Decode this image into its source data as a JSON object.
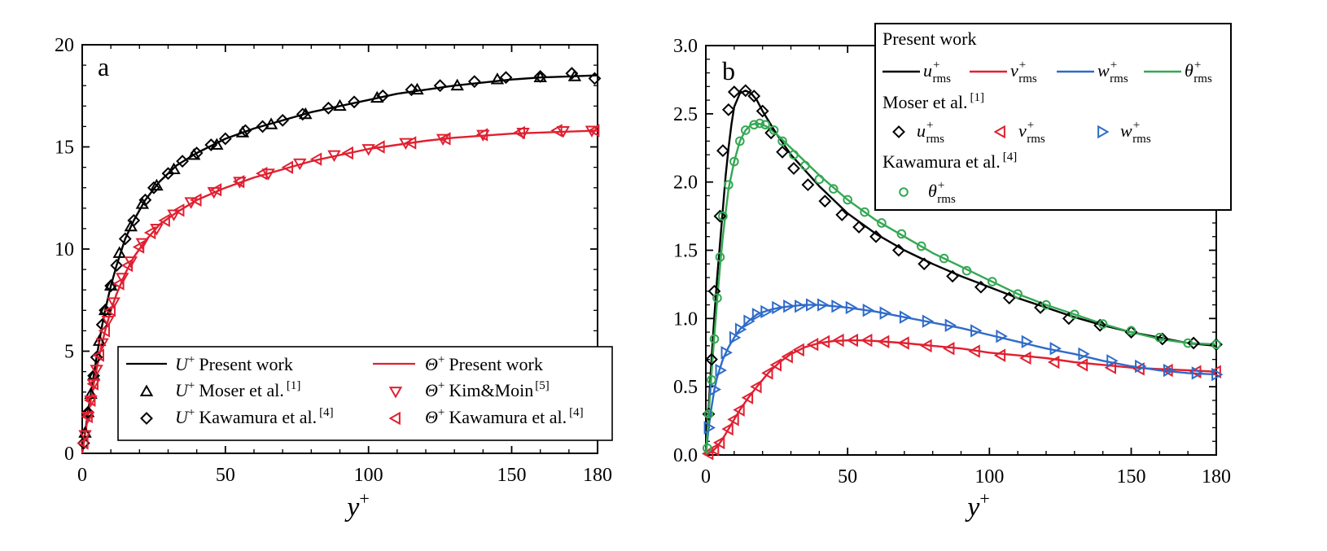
{
  "chart_data": [
    {
      "type": "line",
      "panel_label": "a",
      "xlabel": "y+",
      "ylabel": "",
      "xlim": [
        0,
        180
      ],
      "ylim": [
        0,
        20
      ],
      "xticks": [
        "0",
        "50",
        "100",
        "150",
        "180"
      ],
      "yticks": [
        "0",
        "5",
        "10",
        "15",
        "20"
      ],
      "legend_placement": "bottom-right",
      "series": [
        {
          "name": "U+ Present work",
          "style": "line",
          "color": "#000000",
          "x": [
            0,
            1,
            2,
            3,
            4,
            5,
            6,
            7,
            8,
            10,
            12,
            15,
            18,
            22,
            27,
            33,
            40,
            50,
            60,
            70,
            80,
            90,
            100,
            110,
            120,
            130,
            140,
            150,
            160,
            170,
            180
          ],
          "y": [
            0,
            1.0,
            2.0,
            2.9,
            3.8,
            4.7,
            5.5,
            6.3,
            7.0,
            8.2,
            9.2,
            10.5,
            11.4,
            12.4,
            13.3,
            14.1,
            14.7,
            15.4,
            15.9,
            16.3,
            16.7,
            17.0,
            17.3,
            17.6,
            17.8,
            18.0,
            18.15,
            18.3,
            18.4,
            18.45,
            18.5
          ]
        },
        {
          "name": "Θ+ Present work",
          "style": "line",
          "color": "#e02030",
          "x": [
            0,
            1,
            2,
            3,
            4,
            5,
            6,
            8,
            10,
            12,
            15,
            18,
            22,
            27,
            33,
            40,
            50,
            60,
            70,
            80,
            90,
            100,
            110,
            120,
            130,
            140,
            150,
            160,
            170,
            180
          ],
          "y": [
            0,
            0.9,
            1.8,
            2.6,
            3.4,
            4.1,
            4.8,
            6.0,
            7.0,
            7.8,
            8.8,
            9.6,
            10.4,
            11.2,
            11.8,
            12.4,
            13.0,
            13.5,
            13.9,
            14.3,
            14.6,
            14.9,
            15.1,
            15.3,
            15.45,
            15.55,
            15.65,
            15.7,
            15.75,
            15.8
          ]
        },
        {
          "name": "U+ Moser et al.",
          "reference": "[1]",
          "style": "marker",
          "marker": "triangle-up",
          "color": "#000000",
          "x": [
            1,
            2,
            3,
            4,
            6,
            8,
            10,
            13,
            17,
            21,
            26,
            32,
            39,
            47,
            56,
            66,
            78,
            90,
            103,
            117,
            131,
            145,
            160,
            172
          ],
          "y": [
            1.0,
            2.0,
            2.9,
            3.8,
            5.5,
            7.0,
            8.2,
            9.8,
            11.1,
            12.2,
            13.1,
            13.9,
            14.6,
            15.1,
            15.7,
            16.1,
            16.6,
            17.0,
            17.4,
            17.8,
            18.0,
            18.3,
            18.4,
            18.45
          ]
        },
        {
          "name": "U+ Kawamura et al.",
          "reference": "[4]",
          "style": "marker",
          "marker": "diamond",
          "color": "#000000",
          "x": [
            0.5,
            2,
            4,
            5,
            7,
            8,
            10,
            12,
            15,
            18,
            22,
            25,
            30,
            35,
            40,
            45,
            50,
            57,
            63,
            70,
            77,
            86,
            95,
            105,
            115,
            125,
            137,
            148,
            160,
            171,
            179
          ],
          "y": [
            0.5,
            2.0,
            3.8,
            4.7,
            6.3,
            7.0,
            8.2,
            9.2,
            10.5,
            11.4,
            12.4,
            13.0,
            13.7,
            14.3,
            14.7,
            15.1,
            15.4,
            15.8,
            16.0,
            16.3,
            16.6,
            16.9,
            17.2,
            17.5,
            17.8,
            18.0,
            18.2,
            18.4,
            18.45,
            18.6,
            18.35
          ]
        },
        {
          "name": "Θ+ Kim&Moin",
          "reference": "[5]",
          "style": "marker",
          "marker": "triangle-down",
          "color": "#e02030",
          "x": [
            1,
            2,
            3,
            4,
            5,
            7,
            9,
            11,
            14,
            17,
            21,
            26,
            32,
            38,
            46,
            55,
            65,
            76,
            88,
            100,
            113,
            126,
            140,
            154,
            168,
            178
          ],
          "y": [
            0.9,
            1.8,
            2.6,
            3.4,
            4.1,
            5.4,
            6.5,
            7.4,
            8.6,
            9.4,
            10.3,
            11.0,
            11.7,
            12.3,
            12.8,
            13.3,
            13.7,
            14.2,
            14.6,
            14.9,
            15.2,
            15.4,
            15.6,
            15.7,
            15.78,
            15.8
          ]
        },
        {
          "name": "Θ+ Kawamura et al.",
          "reference": "[4]",
          "style": "marker",
          "marker": "triangle-left",
          "color": "#e02030",
          "x": [
            0.5,
            2,
            3,
            4,
            6,
            8,
            10,
            13,
            16,
            20,
            24,
            29,
            34,
            40,
            47,
            55,
            63,
            72,
            82,
            93,
            104,
            115,
            127,
            140,
            153,
            166,
            179
          ],
          "y": [
            0.5,
            1.8,
            2.6,
            3.4,
            4.8,
            6.0,
            7.0,
            8.3,
            9.2,
            10.1,
            10.8,
            11.4,
            11.9,
            12.4,
            12.9,
            13.3,
            13.7,
            14.0,
            14.4,
            14.7,
            15.0,
            15.2,
            15.4,
            15.6,
            15.7,
            15.8,
            15.8
          ]
        }
      ]
    },
    {
      "type": "line",
      "panel_label": "b",
      "xlabel": "y+",
      "ylabel": "",
      "xlim": [
        0,
        180
      ],
      "ylim": [
        0,
        3.0
      ],
      "xticks": [
        "0",
        "50",
        "100",
        "150",
        "180"
      ],
      "yticks": [
        "0.0",
        "0.5",
        "1.0",
        "1.5",
        "2.0",
        "2.5",
        "3.0"
      ],
      "legend_placement": "top-right",
      "legend_groups": [
        "Present work",
        "Moser et al.",
        "Kawamura et al."
      ],
      "legend_group_refs": [
        "",
        "[1]",
        "[4]"
      ],
      "series": [
        {
          "name": "u+ rms",
          "group": "Present work",
          "style": "line",
          "color": "#000000",
          "x": [
            0,
            1,
            2,
            3,
            4,
            5,
            6,
            7,
            8,
            9,
            10,
            12,
            14,
            16,
            18,
            20,
            25,
            30,
            40,
            50,
            60,
            70,
            80,
            90,
            100,
            110,
            120,
            130,
            140,
            150,
            160,
            170,
            180
          ],
          "y": [
            0,
            0.35,
            0.7,
            1.02,
            1.3,
            1.55,
            1.8,
            2.05,
            2.25,
            2.42,
            2.55,
            2.65,
            2.67,
            2.65,
            2.6,
            2.52,
            2.35,
            2.2,
            1.97,
            1.77,
            1.62,
            1.5,
            1.4,
            1.31,
            1.23,
            1.15,
            1.08,
            1.01,
            0.95,
            0.9,
            0.86,
            0.82,
            0.8
          ]
        },
        {
          "name": "v+ rms",
          "group": "Present work",
          "style": "line",
          "color": "#e02030",
          "x": [
            0,
            2,
            4,
            6,
            8,
            10,
            12,
            15,
            18,
            22,
            26,
            30,
            35,
            40,
            45,
            50,
            55,
            60,
            70,
            80,
            90,
            100,
            110,
            120,
            130,
            140,
            150,
            160,
            170,
            180
          ],
          "y": [
            0,
            0.02,
            0.06,
            0.12,
            0.19,
            0.26,
            0.33,
            0.42,
            0.5,
            0.6,
            0.68,
            0.74,
            0.79,
            0.82,
            0.835,
            0.84,
            0.84,
            0.835,
            0.82,
            0.8,
            0.78,
            0.75,
            0.73,
            0.71,
            0.68,
            0.66,
            0.64,
            0.63,
            0.62,
            0.61
          ]
        },
        {
          "name": "w+ rms",
          "group": "Present work",
          "style": "line",
          "color": "#2f6bc9",
          "x": [
            0,
            1,
            2,
            3,
            4,
            6,
            8,
            10,
            12,
            15,
            18,
            22,
            26,
            30,
            35,
            40,
            45,
            50,
            60,
            70,
            80,
            90,
            100,
            110,
            120,
            130,
            140,
            150,
            160,
            170,
            180
          ],
          "y": [
            0,
            0.2,
            0.35,
            0.48,
            0.57,
            0.7,
            0.79,
            0.86,
            0.92,
            0.98,
            1.03,
            1.06,
            1.08,
            1.09,
            1.1,
            1.1,
            1.09,
            1.08,
            1.05,
            1.01,
            0.97,
            0.93,
            0.88,
            0.83,
            0.78,
            0.74,
            0.69,
            0.65,
            0.62,
            0.6,
            0.59
          ]
        },
        {
          "name": "θ+ rms",
          "group": "Present work",
          "style": "line",
          "color": "#34a853",
          "x": [
            0,
            1,
            2,
            3,
            4,
            5,
            6,
            7,
            8,
            10,
            12,
            14,
            16,
            18,
            20,
            22,
            25,
            30,
            35,
            40,
            50,
            60,
            70,
            80,
            90,
            100,
            110,
            120,
            130,
            140,
            150,
            160,
            170,
            180
          ],
          "y": [
            0,
            0.3,
            0.6,
            0.88,
            1.13,
            1.38,
            1.6,
            1.78,
            1.95,
            2.15,
            2.3,
            2.38,
            2.42,
            2.43,
            2.42,
            2.4,
            2.35,
            2.25,
            2.15,
            2.05,
            1.87,
            1.72,
            1.6,
            1.48,
            1.38,
            1.28,
            1.18,
            1.1,
            1.03,
            0.96,
            0.9,
            0.85,
            0.82,
            0.81
          ]
        },
        {
          "name": "u+ rms",
          "group": "Moser et al.",
          "style": "marker",
          "marker": "diamond",
          "color": "#000000",
          "x": [
            1,
            2,
            3,
            5,
            6,
            8,
            10,
            14,
            17,
            20,
            23,
            27,
            31,
            36,
            42,
            48,
            54,
            60,
            68,
            77,
            87,
            97,
            107,
            118,
            128,
            139,
            150,
            161,
            172,
            180
          ],
          "y": [
            0.3,
            0.7,
            1.2,
            1.75,
            2.23,
            2.53,
            2.66,
            2.67,
            2.63,
            2.52,
            2.36,
            2.22,
            2.1,
            1.98,
            1.86,
            1.76,
            1.67,
            1.6,
            1.5,
            1.4,
            1.31,
            1.23,
            1.15,
            1.08,
            1.0,
            0.95,
            0.9,
            0.85,
            0.82,
            0.81
          ]
        },
        {
          "name": "v+ rms",
          "group": "Moser et al.",
          "style": "marker",
          "marker": "triangle-left",
          "color": "#e02030",
          "x": [
            1,
            3,
            5,
            8,
            10,
            12,
            15,
            18,
            22,
            25,
            29,
            33,
            38,
            42,
            47,
            52,
            57,
            63,
            70,
            78,
            86,
            95,
            104,
            113,
            123,
            133,
            143,
            153,
            163,
            173,
            180
          ],
          "y": [
            0.01,
            0.04,
            0.09,
            0.19,
            0.26,
            0.33,
            0.42,
            0.5,
            0.6,
            0.66,
            0.72,
            0.77,
            0.81,
            0.83,
            0.84,
            0.84,
            0.84,
            0.83,
            0.82,
            0.8,
            0.78,
            0.76,
            0.73,
            0.71,
            0.68,
            0.66,
            0.64,
            0.63,
            0.62,
            0.61,
            0.61
          ]
        },
        {
          "name": "w+ rms",
          "group": "Moser et al.",
          "style": "marker",
          "marker": "triangle-right",
          "color": "#2f6bc9",
          "x": [
            1,
            3,
            5,
            7,
            10,
            12,
            15,
            18,
            21,
            25,
            29,
            33,
            37,
            41,
            46,
            51,
            57,
            63,
            70,
            78,
            86,
            95,
            104,
            113,
            123,
            133,
            143,
            153,
            163,
            173,
            180
          ],
          "y": [
            0.2,
            0.48,
            0.62,
            0.75,
            0.86,
            0.92,
            0.98,
            1.03,
            1.05,
            1.08,
            1.09,
            1.09,
            1.1,
            1.1,
            1.09,
            1.08,
            1.06,
            1.04,
            1.01,
            0.98,
            0.95,
            0.91,
            0.87,
            0.83,
            0.78,
            0.74,
            0.69,
            0.65,
            0.62,
            0.6,
            0.59
          ]
        },
        {
          "name": "θ+ rms",
          "group": "Kawamura et al.",
          "style": "marker",
          "marker": "circle",
          "color": "#34a853",
          "x": [
            0.5,
            1,
            2,
            3,
            4,
            5,
            6,
            8,
            10,
            12,
            14,
            17,
            19,
            21,
            24,
            27,
            31,
            35,
            40,
            45,
            50,
            56,
            62,
            69,
            76,
            84,
            92,
            101,
            110,
            120,
            130,
            140,
            150,
            160,
            170,
            180
          ],
          "y": [
            0.05,
            0.3,
            0.55,
            0.85,
            1.15,
            1.45,
            1.75,
            1.98,
            2.15,
            2.3,
            2.38,
            2.42,
            2.43,
            2.42,
            2.38,
            2.3,
            2.2,
            2.12,
            2.02,
            1.95,
            1.87,
            1.78,
            1.7,
            1.62,
            1.53,
            1.44,
            1.35,
            1.27,
            1.18,
            1.1,
            1.03,
            0.96,
            0.91,
            0.86,
            0.82,
            0.81
          ]
        }
      ]
    }
  ],
  "panel_a_legend": [
    {
      "symbol": "U",
      "text": "Present work",
      "ref": ""
    },
    {
      "symbol": "Θ",
      "text": "Present work",
      "ref": ""
    },
    {
      "symbol": "U",
      "text": "Moser et al.",
      "ref": "[1]"
    },
    {
      "symbol": "Θ",
      "text": "Kim&Moin",
      "ref": "[5]"
    },
    {
      "symbol": "U",
      "text": "Kawamura et al.",
      "ref": "[4]"
    },
    {
      "symbol": "Θ",
      "text": "Kawamura et al.",
      "ref": "[4]"
    }
  ],
  "panel_b_legend_items": [
    "u",
    "v",
    "w",
    "θ"
  ],
  "rms_subscript": "rms",
  "plus_sign": "+"
}
